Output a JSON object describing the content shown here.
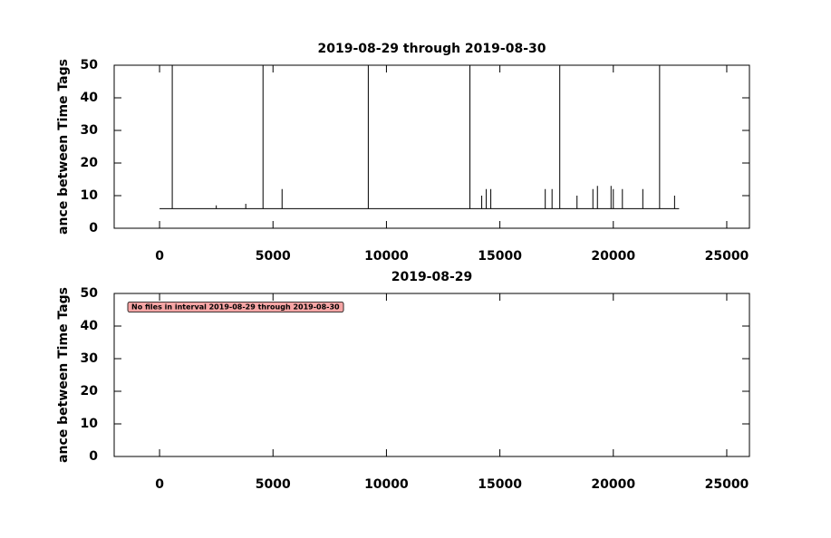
{
  "chart_data": [
    {
      "type": "line",
      "title": "2019-08-29 through 2019-08-30",
      "y_label": "ance between Time Tags",
      "xlim": [
        -2000,
        26000
      ],
      "ylim": [
        0,
        50
      ],
      "xticks": [
        0,
        5000,
        10000,
        15000,
        20000,
        25000
      ],
      "yticks": [
        0,
        10,
        20,
        30,
        40,
        50
      ],
      "series": [
        {
          "color": "#000000",
          "x": [
            0,
            560,
            560,
            560,
            2500,
            2500,
            2500,
            3800,
            3800,
            3800,
            4560,
            4560,
            4560,
            5400,
            5400,
            5400,
            9200,
            9200,
            9200,
            13680,
            13680,
            13680,
            14200,
            14200,
            14200,
            14400,
            14400,
            14400,
            14600,
            14600,
            14600,
            17000,
            17000,
            17000,
            17300,
            17300,
            17300,
            17640,
            17640,
            17640,
            18400,
            18400,
            18400,
            19100,
            19100,
            19100,
            19300,
            19300,
            19300,
            19900,
            19900,
            19900,
            20000,
            20000,
            20000,
            20400,
            20400,
            20400,
            21300,
            21300,
            21300,
            22040,
            22040,
            22040,
            22700,
            22700,
            22700,
            22900
          ],
          "values": [
            6,
            6,
            50,
            6,
            6,
            7,
            6,
            6,
            7.5,
            6,
            6,
            50,
            6,
            6,
            12,
            6,
            6,
            50,
            6,
            6,
            50,
            6,
            6,
            10,
            6,
            6,
            12,
            6,
            6,
            12,
            6,
            6,
            12,
            6,
            6,
            12,
            6,
            6,
            50,
            6,
            6,
            10,
            6,
            6,
            12,
            6,
            6,
            13,
            6,
            6,
            13,
            6,
            6,
            12,
            6,
            6,
            12,
            6,
            6,
            12,
            6,
            6,
            50,
            6,
            6,
            10,
            6,
            6
          ]
        }
      ]
    },
    {
      "type": "line",
      "title": "2019-08-29",
      "y_label": "ance between Time Tags",
      "xlim": [
        -2000,
        26000
      ],
      "ylim": [
        0,
        50
      ],
      "xticks": [
        0,
        5000,
        10000,
        15000,
        20000,
        25000
      ],
      "yticks": [
        0,
        10,
        20,
        30,
        40,
        50
      ],
      "annotation": "No files in interval 2019-08-29 through 2019-08-30"
    }
  ]
}
